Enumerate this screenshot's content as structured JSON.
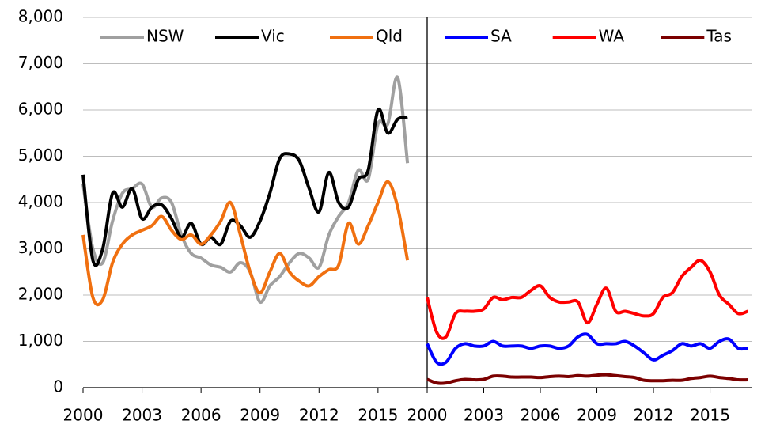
{
  "chart_data": [
    {
      "type": "line",
      "x": [
        2000,
        2000.5,
        2001,
        2001.5,
        2002,
        2002.5,
        2003,
        2003.5,
        2004,
        2004.5,
        2005,
        2005.5,
        2006,
        2006.5,
        2007,
        2007.5,
        2008,
        2008.5,
        2009,
        2009.5,
        2010,
        2010.5,
        2011,
        2011.5,
        2012,
        2012.5,
        2013,
        2013.5,
        2014,
        2014.5,
        2015,
        2015.5,
        2016,
        2016.5
      ],
      "series": [
        {
          "name": "NSW",
          "color": "#a0a0a0",
          "values": [
            4400,
            3000,
            2700,
            3600,
            4200,
            4300,
            4400,
            3900,
            4100,
            4000,
            3300,
            2900,
            2800,
            2650,
            2600,
            2500,
            2700,
            2500,
            1850,
            2200,
            2400,
            2700,
            2900,
            2800,
            2600,
            3300,
            3700,
            4000,
            4700,
            4500,
            5700,
            5700,
            6700,
            4850
          ]
        },
        {
          "name": "Vic",
          "color": "#000000",
          "values": [
            4600,
            2750,
            3000,
            4200,
            3900,
            4300,
            3650,
            3900,
            3950,
            3650,
            3250,
            3550,
            3100,
            3250,
            3100,
            3600,
            3500,
            3250,
            3600,
            4200,
            4950,
            5050,
            4900,
            4300,
            3800,
            4650,
            4000,
            3900,
            4500,
            4700,
            6000,
            5500,
            5800,
            5850
          ]
        },
        {
          "name": "Qld",
          "color": "#f07010",
          "values": [
            3300,
            1950,
            1900,
            2700,
            3100,
            3300,
            3400,
            3500,
            3700,
            3400,
            3200,
            3300,
            3100,
            3300,
            3600,
            4000,
            3300,
            2500,
            2050,
            2500,
            2900,
            2500,
            2300,
            2200,
            2400,
            2550,
            2650,
            3550,
            3100,
            3500,
            4000,
            4450,
            3900,
            2750
          ]
        }
      ],
      "xlim": [
        2000,
        2017.5
      ],
      "xticks": [
        2000,
        2003,
        2006,
        2009,
        2012,
        2015
      ],
      "ylim": [
        0,
        8000
      ],
      "yticks": [
        0,
        {
          "value": 1000,
          "label": "1,000"
        },
        {
          "value": 2000,
          "label": "2,000"
        },
        {
          "value": 3000,
          "label": "3,000"
        },
        {
          "value": 4000,
          "label": "4,000"
        },
        {
          "value": 5000,
          "label": "5,000"
        },
        {
          "value": 6000,
          "label": "6,000"
        },
        {
          "value": 7000,
          "label": "7,000"
        },
        {
          "value": 8000,
          "label": "8,000"
        }
      ],
      "grid": true,
      "legend": "top"
    },
    {
      "type": "line",
      "x": [
        2000,
        2000.5,
        2001,
        2001.5,
        2002,
        2002.5,
        2003,
        2003.5,
        2004,
        2004.5,
        2005,
        2005.5,
        2006,
        2006.5,
        2007,
        2007.5,
        2008,
        2008.5,
        2009,
        2009.5,
        2010,
        2010.5,
        2011,
        2011.5,
        2012,
        2012.5,
        2013,
        2013.5,
        2014,
        2014.5,
        2015,
        2015.5,
        2016,
        2016.5,
        2017
      ],
      "series": [
        {
          "name": "SA",
          "color": "#0000ff",
          "values": [
            950,
            550,
            550,
            850,
            950,
            900,
            900,
            1000,
            900,
            900,
            900,
            850,
            900,
            900,
            850,
            900,
            1100,
            1150,
            950,
            950,
            950,
            1000,
            900,
            750,
            600,
            700,
            800,
            950,
            900,
            950,
            850,
            1000,
            1050,
            850,
            850
          ]
        },
        {
          "name": "WA",
          "color": "#ff0000",
          "values": [
            1950,
            1200,
            1100,
            1600,
            1650,
            1650,
            1700,
            1950,
            1900,
            1950,
            1950,
            2100,
            2200,
            1950,
            1850,
            1850,
            1850,
            1400,
            1800,
            2150,
            1650,
            1650,
            1600,
            1550,
            1600,
            1950,
            2050,
            2400,
            2600,
            2750,
            2500,
            2000,
            1800,
            1600,
            1650
          ]
        },
        {
          "name": "Tas",
          "color": "#7b0000",
          "values": [
            180,
            100,
            100,
            150,
            180,
            170,
            180,
            250,
            250,
            230,
            230,
            230,
            220,
            240,
            250,
            240,
            260,
            250,
            270,
            280,
            260,
            240,
            220,
            160,
            150,
            150,
            160,
            160,
            200,
            220,
            250,
            220,
            200,
            170,
            170
          ]
        }
      ],
      "xlim": [
        2000,
        2017.2
      ],
      "xticks": [
        2000,
        2003,
        2006,
        2009,
        2012,
        2015
      ],
      "ylim": [
        0,
        8000
      ],
      "legend": "top"
    }
  ]
}
